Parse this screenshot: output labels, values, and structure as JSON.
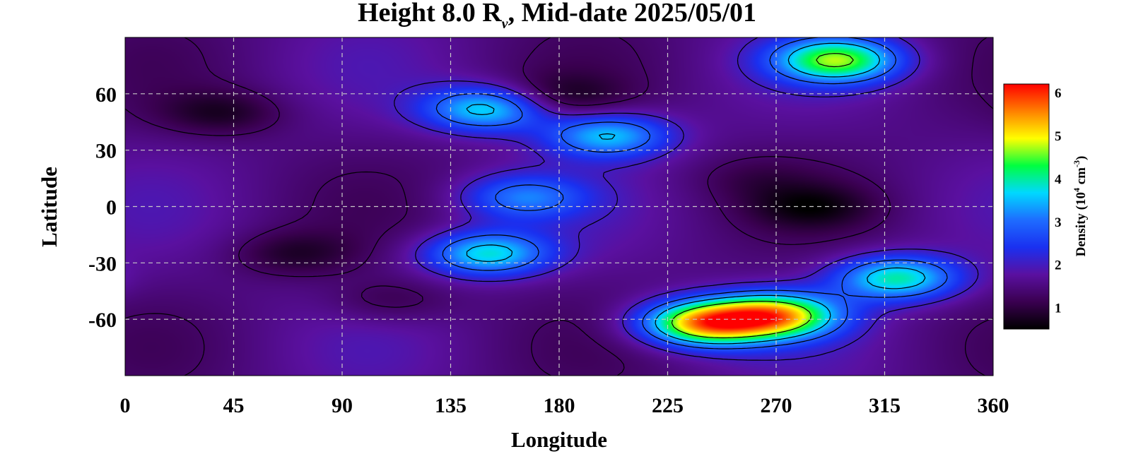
{
  "chart_data": {
    "type": "heatmap",
    "title": {
      "prefix": "Height 8.0 R",
      "subscript": "ν",
      "suffix": ", Mid-date 2025/05/01"
    },
    "xlabel": "Longitude",
    "ylabel": "Latitude",
    "xlim": [
      0,
      360
    ],
    "ylim": [
      -90,
      90
    ],
    "xticks": [
      0,
      45,
      90,
      135,
      180,
      225,
      270,
      315,
      360
    ],
    "yticks": [
      60,
      30,
      0,
      -30,
      -60
    ],
    "ytick_labels": [
      "60",
      "30",
      "0",
      "-30",
      "-60"
    ],
    "grid": true,
    "colorbar": {
      "label_prefix": "Density (10",
      "label_sup1": "4",
      "label_mid": " cm",
      "label_sup2": "-3",
      "label_suffix": ")",
      "range": [
        0.5,
        6.2
      ],
      "ticks": [
        1,
        2,
        3,
        4,
        5,
        6
      ],
      "colormap": [
        "#000000",
        "#3a0050",
        "#5a10a0",
        "#1a30f0",
        "#1e6cff",
        "#00d8ff",
        "#00ff40",
        "#ffff00",
        "#ff8000",
        "#ff0000"
      ]
    },
    "features": [
      {
        "lon": 40,
        "lat": 50,
        "value": 0.9
      },
      {
        "lon": 70,
        "lat": -25,
        "value": 0.95
      },
      {
        "lon": 110,
        "lat": -50,
        "value": 1.1
      },
      {
        "lon": 180,
        "lat": 58,
        "value": 0.9
      },
      {
        "lon": 150,
        "lat": 52,
        "value": 3.8
      },
      {
        "lon": 200,
        "lat": 38,
        "value": 3.6
      },
      {
        "lon": 165,
        "lat": 5,
        "value": 3.0
      },
      {
        "lon": 150,
        "lat": -25,
        "value": 3.8
      },
      {
        "lon": 240,
        "lat": -62,
        "value": 5.3
      },
      {
        "lon": 270,
        "lat": -58,
        "value": 5.0
      },
      {
        "lon": 295,
        "lat": 78,
        "value": 4.5
      },
      {
        "lon": 320,
        "lat": -38,
        "value": 4.0
      },
      {
        "lon": 285,
        "lat": 0,
        "value": 0.9
      },
      {
        "lon": 260,
        "lat": 15,
        "value": 1.3
      }
    ]
  }
}
